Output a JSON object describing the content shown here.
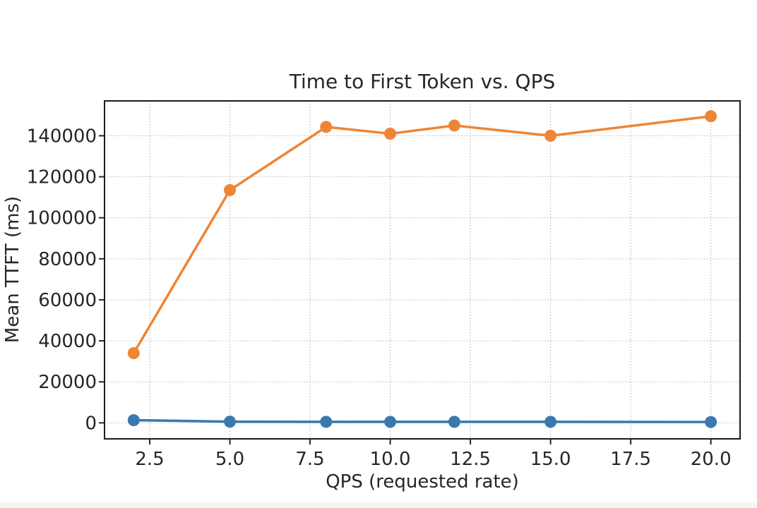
{
  "page": {
    "background": "#ffffff",
    "footer_strip_color": "#f5f5f5"
  },
  "chart_data": {
    "type": "line",
    "title": "Time to First Token vs. QPS",
    "xlabel": "QPS (requested rate)",
    "ylabel": "Mean TTFT (ms)",
    "x": [
      2,
      5,
      8,
      10,
      12,
      15,
      20
    ],
    "series": [
      {
        "color": "#3a78af",
        "marker": "circle",
        "values": [
          1300,
          600,
          500,
          500,
          500,
          500,
          400
        ]
      },
      {
        "color": "#ee8535",
        "marker": "circle",
        "values": [
          34000,
          113500,
          144300,
          141000,
          145000,
          140000,
          149500
        ]
      }
    ],
    "xticks": [
      2.5,
      5.0,
      7.5,
      10.0,
      12.5,
      15.0,
      17.5,
      20.0
    ],
    "xtick_labels": [
      "2.5",
      "5.0",
      "7.5",
      "10.0",
      "12.5",
      "15.0",
      "17.5",
      "20.0"
    ],
    "yticks": [
      0,
      20000,
      40000,
      60000,
      80000,
      100000,
      120000,
      140000
    ],
    "ytick_labels": [
      "0",
      "20000",
      "40000",
      "60000",
      "80000",
      "100000",
      "120000",
      "140000"
    ],
    "xlim": [
      1.09,
      20.91
    ],
    "ylim": [
      -7800,
      157000
    ],
    "grid": "dotted-both-axes",
    "legend": "none",
    "colors": {
      "grid": "#bcbcbc",
      "spine": "#1a1a1a",
      "text": "#262626"
    }
  }
}
